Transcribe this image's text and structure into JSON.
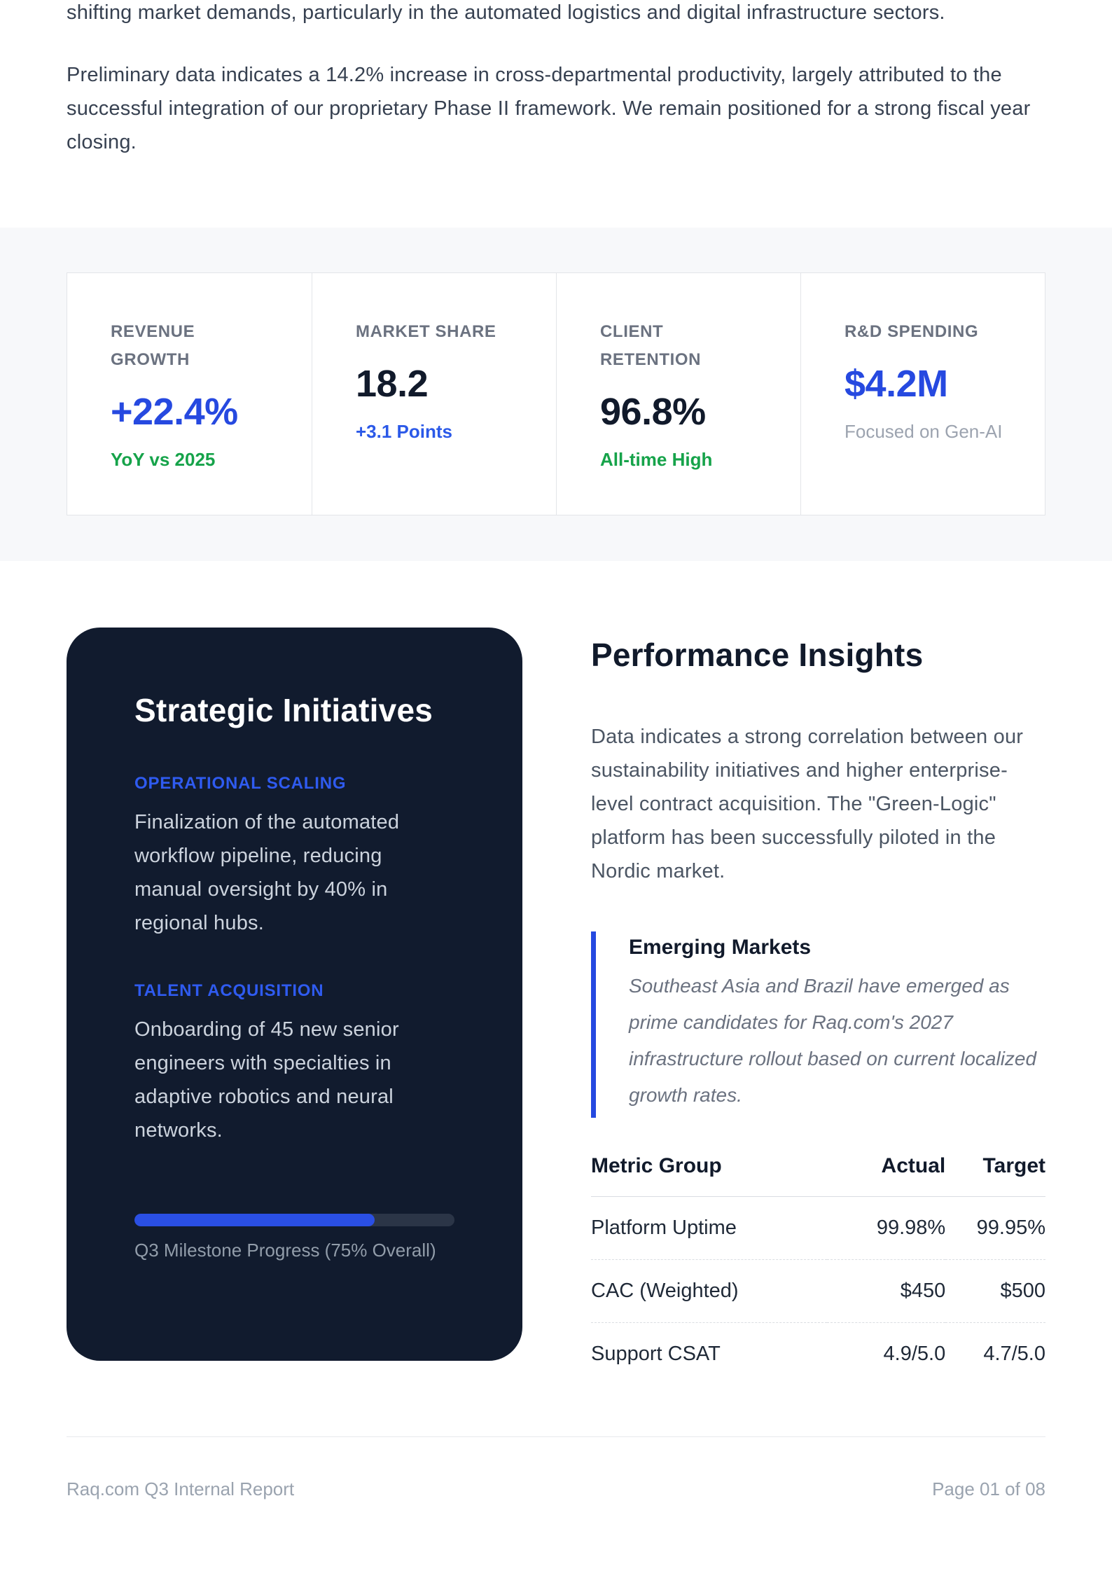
{
  "colors": {
    "accent_blue": "#2649e0",
    "green": "#16a34a",
    "dark_navy": "#111b2e",
    "band_gray": "#f7f8fa"
  },
  "intro": {
    "paragraph1": "shifting market demands, particularly in the automated logistics and digital infrastructure sectors.",
    "paragraph2": "Preliminary data indicates a 14.2% increase in cross-departmental productivity, largely attributed to the successful integration of our proprietary Phase II framework. We remain positioned for a strong fiscal year closing."
  },
  "stats": {
    "cards": [
      {
        "label": "REVENUE GROWTH",
        "value": "+22.4%",
        "sub": "YoY vs 2025"
      },
      {
        "label": "MARKET SHARE",
        "value": "18.2",
        "sub": "+3.1 Points"
      },
      {
        "label": "CLIENT RETENTION",
        "value": "96.8%",
        "sub": "All-time High"
      },
      {
        "label": "R&D SPENDING",
        "value": "$4.2M",
        "sub": "Focused on Gen-AI"
      }
    ]
  },
  "strategic": {
    "title": "Strategic Initiatives",
    "sections": [
      {
        "label": "OPERATIONAL SCALING",
        "text": "Finalization of the automated workflow pipeline, reducing manual oversight by 40% in regional hubs."
      },
      {
        "label": "TALENT ACQUISITION",
        "text": "Onboarding of 45 new senior engineers with specialties in adaptive robotics and neural networks."
      }
    ],
    "progress_percent": 75,
    "progress_label": "Q3 Milestone Progress (75% Overall)"
  },
  "insights": {
    "title": "Performance Insights",
    "paragraph": "Data indicates a strong correlation between our sustainability initiatives and higher enterprise-level contract acquisition. The \"Green-Logic\" platform has been successfully piloted in the Nordic market.",
    "quote": {
      "title": "Emerging Markets",
      "text": "Southeast Asia and Brazil have emerged as prime candidates for Raq.com's 2027 infrastructure rollout based on current localized growth rates."
    },
    "table": {
      "headers": [
        "Metric Group",
        "Actual",
        "Target"
      ],
      "rows": [
        [
          "Platform Uptime",
          "99.98%",
          "99.95%"
        ],
        [
          "CAC (Weighted)",
          "$450",
          "$500"
        ],
        [
          "Support CSAT",
          "4.9/5.0",
          "4.7/5.0"
        ]
      ]
    }
  },
  "footer": {
    "left": "Raq.com Q3 Internal Report",
    "right": "Page 01 of 08"
  }
}
